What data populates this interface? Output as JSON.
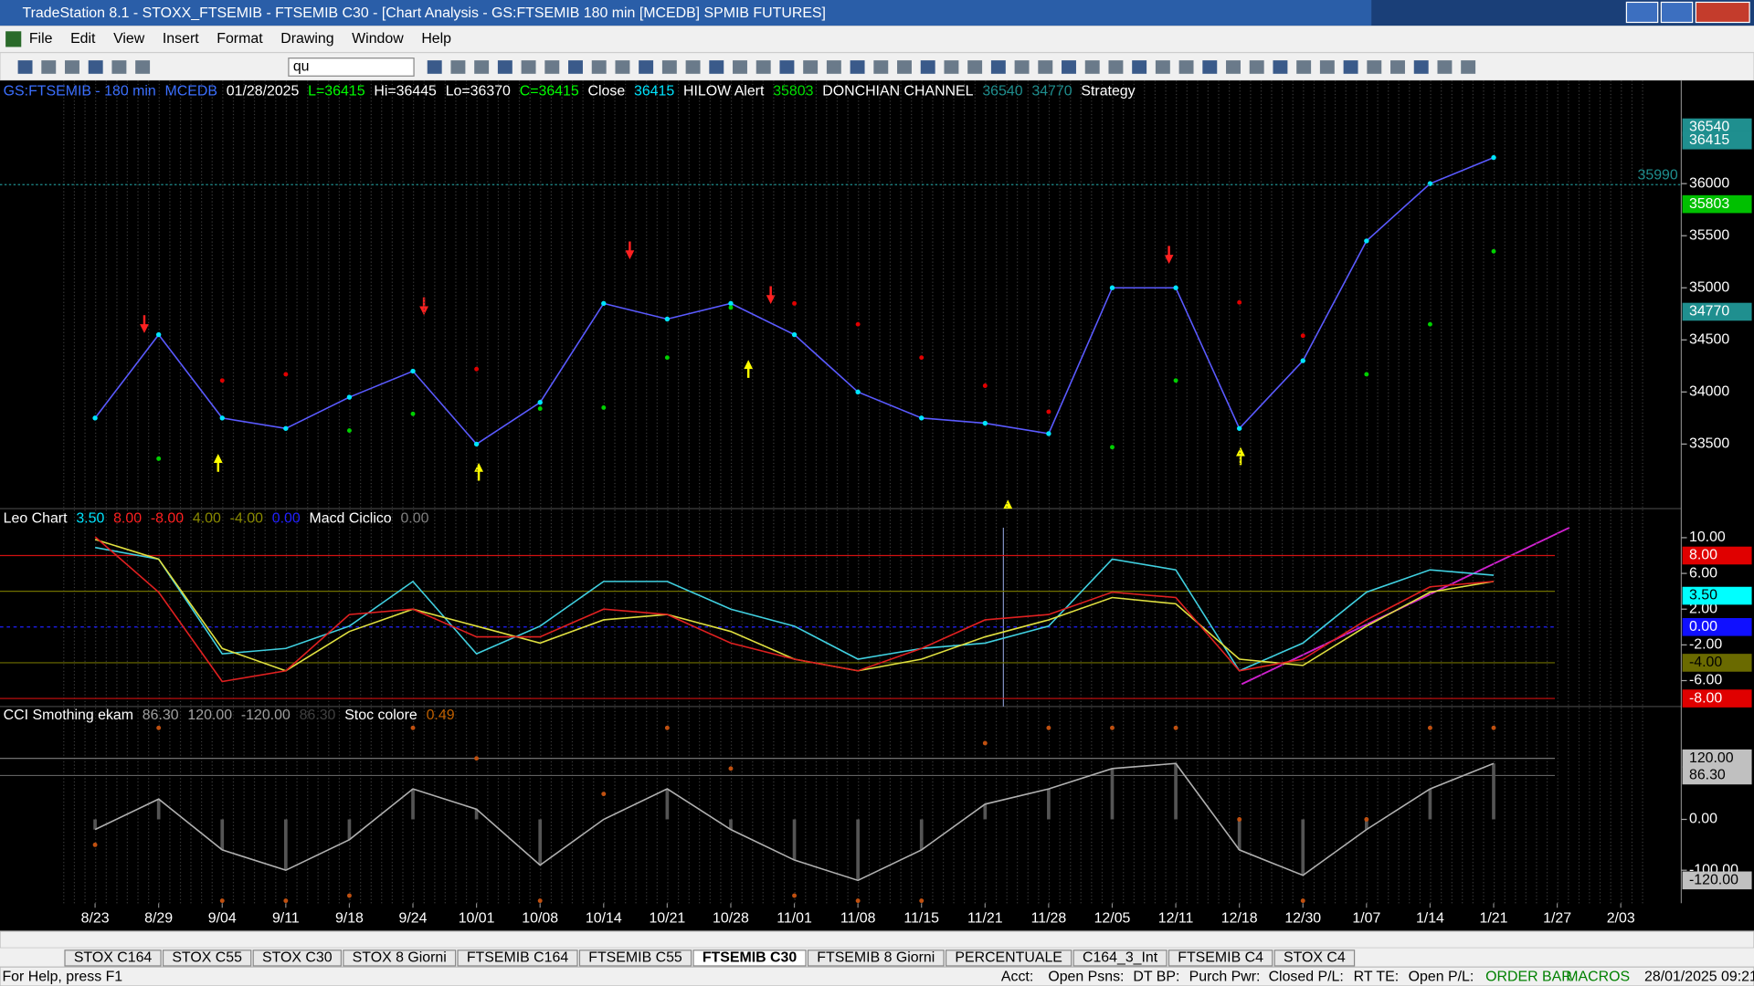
{
  "window": {
    "title": "TradeStation 8.1 - STOXX_FTSEMIB - FTSEMIB C30 - [Chart Analysis - GS:FTSEMIB  180 min  [MCEDB] SPMIB FUTURES]"
  },
  "menu": [
    "File",
    "Edit",
    "View",
    "Insert",
    "Format",
    "Drawing",
    "Window",
    "Help"
  ],
  "toolbar": {
    "symbol_box": "qu"
  },
  "chart_data": [
    {
      "type": "line",
      "header": [
        {
          "text": "GS:FTSEMIB - 180 min",
          "color": "#3b6fff"
        },
        {
          "text": "MCEDB",
          "color": "#3b6fff"
        },
        {
          "text": "01/28/2025",
          "color": "#ffffff"
        },
        {
          "text": "L=36415",
          "color": "#00ff00"
        },
        {
          "text": "Hi=36445",
          "color": "#ffffff"
        },
        {
          "text": "Lo=36370",
          "color": "#ffffff"
        },
        {
          "text": "C=36415",
          "color": "#00ff00"
        },
        {
          "text": "Close",
          "color": "#ffffff"
        },
        {
          "text": "36415",
          "color": "#00e5ff"
        },
        {
          "text": "HILOW Alert",
          "color": "#ffffff"
        },
        {
          "text": "35803",
          "color": "#00e000"
        },
        {
          "text": "DONCHIAN CHANNEL",
          "color": "#ffffff"
        },
        {
          "text": "36540",
          "color": "#1f8f8f"
        },
        {
          "text": "34770",
          "color": "#1f8f8f"
        },
        {
          "text": "Strategy",
          "color": "#ffffff"
        }
      ],
      "categories": [
        "8/23",
        "8/29",
        "9/04",
        "9/11",
        "9/18",
        "9/24",
        "10/01",
        "10/08",
        "10/14",
        "10/21",
        "10/28",
        "11/01",
        "11/08",
        "11/15",
        "11/21",
        "11/28",
        "12/05",
        "12/11",
        "12/18",
        "12/30",
        "1/07",
        "1/14",
        "1/21",
        "1/27",
        "2/03"
      ],
      "series": [
        {
          "color": "#00e5ff",
          "line_color": "#5a5aff",
          "dots": true,
          "values": [
            33750,
            34550,
            33750,
            33650,
            33950,
            34200,
            33500,
            33900,
            34850,
            34700,
            34850,
            34550,
            34000,
            33750,
            33700,
            33600,
            35000,
            35000,
            33650,
            34300,
            35450,
            36000,
            36250,
            null,
            null
          ]
        },
        {
          "color": "#00d000",
          "alt_color": "#e00000",
          "dotted": true,
          "values": [
            null,
            33360,
            34110,
            34170,
            33630,
            33790,
            34220,
            33840,
            33850,
            34330,
            34810,
            34850,
            34650,
            34330,
            34060,
            33810,
            33470,
            34110,
            34860,
            34540,
            34170,
            34650,
            35350,
            null,
            null
          ]
        }
      ],
      "ylim": [
        32880,
        36990
      ],
      "yticks": [
        33500,
        34000,
        34500,
        35000,
        35500,
        36000
      ],
      "markers": [
        {
          "value": 36540,
          "color": "#1f8f8f"
        },
        {
          "value": 36415,
          "color": "#1f8f8f"
        },
        {
          "value": 35990,
          "color": "#1f8f8f"
        },
        {
          "value": 35803,
          "color": "#00c000"
        },
        {
          "value": 34770,
          "color": "#1f8f8f"
        }
      ]
    },
    {
      "type": "line",
      "header": [
        {
          "text": "Leo Chart",
          "color": "#ffffff"
        },
        {
          "text": "3.50",
          "color": "#00e5ff"
        },
        {
          "text": "8.00",
          "color": "#ff2020"
        },
        {
          "text": "-8.00",
          "color": "#ff2020"
        },
        {
          "text": "4.00",
          "color": "#8a8a00"
        },
        {
          "text": "-4.00",
          "color": "#8a8a00"
        },
        {
          "text": "0.00",
          "color": "#2020ff"
        },
        {
          "text": "Macd Ciclico",
          "color": "#ffffff"
        },
        {
          "text": "0.00",
          "color": "#808080"
        }
      ],
      "series": [
        {
          "color": "#40d0e0",
          "values": [
            8.9,
            7.6,
            -3,
            -2.4,
            0.1,
            5.1,
            -3,
            0.1,
            5.1,
            5.1,
            2,
            0.1,
            -3.6,
            -2.4,
            -1.8,
            0.1,
            7.6,
            6.4,
            -4.9,
            -1.8,
            3.9,
            6.4,
            5.8,
            null,
            null
          ]
        },
        {
          "color": "#e0e040",
          "values": [
            9.8,
            7.6,
            -2.4,
            -4.9,
            -0.5,
            2,
            0.1,
            -1.8,
            0.8,
            1.4,
            -0.5,
            -3.6,
            -4.9,
            -3.6,
            -1.1,
            0.8,
            3.3,
            2.6,
            -3.6,
            -4.3,
            0.1,
            3.9,
            5.1,
            null,
            null
          ]
        },
        {
          "color": "#e02020",
          "values": [
            10.1,
            3.9,
            -6.1,
            -4.9,
            1.4,
            2,
            -1.1,
            -1.1,
            2,
            1.4,
            -1.8,
            -3.6,
            -4.9,
            -2.4,
            0.8,
            1.4,
            3.9,
            3.3,
            -4.9,
            -3.6,
            0.8,
            4.5,
            5.1,
            null,
            null
          ]
        }
      ],
      "ylim": [
        -8.9,
        13.25
      ],
      "yticks": [
        {
          "value": 10,
          "label": "10.00"
        },
        {
          "value": 6,
          "label": "6.00"
        },
        {
          "value": 2,
          "label": "2.00"
        },
        {
          "value": -2,
          "label": "-2.00"
        },
        {
          "value": -6,
          "label": "-6.00"
        }
      ],
      "levels": [
        {
          "value": 8,
          "color": "#d01010"
        },
        {
          "value": 4,
          "color": "#707000"
        },
        {
          "value": 0,
          "color": "#2020ff"
        },
        {
          "value": -4,
          "color": "#707000"
        },
        {
          "value": -8,
          "color": "#d01010"
        }
      ],
      "markers": [
        {
          "value": 8,
          "label": "8.00",
          "color": "#e00000"
        },
        {
          "value": 3.5,
          "label": "3.50",
          "color": "#00ffff"
        },
        {
          "value": 0,
          "label": "0.00",
          "color": "#1010ff"
        },
        {
          "value": -4,
          "label": "-4.00",
          "color": "#6a6a00"
        },
        {
          "value": -8,
          "label": "-8.00",
          "color": "#e00000"
        }
      ]
    },
    {
      "type": "line",
      "header": [
        {
          "text": "CCI Smothing ekam",
          "color": "#ffffff"
        },
        {
          "text": "86.30",
          "color": "#a0a0a0"
        },
        {
          "text": "120.00",
          "color": "#a0a0a0"
        },
        {
          "text": "-120.00",
          "color": "#a0a0a0"
        },
        {
          "text": "86.30",
          "color": "#404040"
        },
        {
          "text": "Stoc colore",
          "color": "#ffffff"
        },
        {
          "text": "0.49",
          "color": "#c06000"
        }
      ],
      "series": [
        {
          "color": "#b0b0b0",
          "histogram": true,
          "values": [
            -20,
            40,
            -60,
            -100,
            -40,
            60,
            20,
            -90,
            0,
            60,
            -20,
            -80,
            -120,
            -60,
            30,
            60,
            100,
            110,
            -60,
            -110,
            -20,
            60,
            110,
            null,
            null
          ]
        },
        {
          "color": "#c05010",
          "dotted": true,
          "values": [
            -50,
            180,
            -160,
            -160,
            -150,
            180,
            120,
            -160,
            50,
            180,
            100,
            -150,
            -160,
            -160,
            150,
            180,
            180,
            180,
            0,
            -160,
            0,
            180,
            180,
            null,
            null
          ]
        }
      ],
      "ylim": [
        -165,
        222
      ],
      "yticks": [
        {
          "value": 0,
          "label": "0.00"
        },
        {
          "value": -100,
          "label": "-100.00"
        }
      ],
      "levels": [
        {
          "value": 120,
          "color": "#808080"
        },
        {
          "value": 86.3,
          "color": "#606060"
        }
      ],
      "markers": [
        {
          "value": 120,
          "label": "120.00",
          "color": "#c0c0c0"
        },
        {
          "value": 86.3,
          "label": "86.30",
          "color": "#c0c0c0"
        },
        {
          "value": -120,
          "label": "-120.00",
          "color": "#c0c0c0"
        }
      ]
    }
  ],
  "tabs": [
    {
      "label": "STOX C164"
    },
    {
      "label": "STOX C55"
    },
    {
      "label": "STOX  C30"
    },
    {
      "label": "STOX  8 Giorni"
    },
    {
      "label": "FTSEMIB C164"
    },
    {
      "label": "FTSEMIB C55"
    },
    {
      "label": "FTSEMIB C30",
      "active": true
    },
    {
      "label": "FTSEMIB  8 Giorni"
    },
    {
      "label": "PERCENTUALE"
    },
    {
      "label": "C164_3_Int"
    },
    {
      "label": "FTSEMIB C4"
    },
    {
      "label": "STOX  C4"
    }
  ],
  "status_bar": [
    {
      "text": "For Help, press F1",
      "color": "#000000"
    },
    {
      "text": "Acct:",
      "color": "#000000"
    },
    {
      "text": "Open Psns:",
      "color": "#000000"
    },
    {
      "text": "DT BP:",
      "color": "#000000"
    },
    {
      "text": "Purch Pwr:",
      "color": "#000000"
    },
    {
      "text": "Closed P/L:",
      "color": "#000000"
    },
    {
      "text": "RT TE:",
      "color": "#000000"
    },
    {
      "text": "Open P/L:",
      "color": "#000000"
    },
    {
      "text": "ORDER BAR",
      "color": "#008000"
    },
    {
      "text": "MACROS",
      "color": "#008000"
    },
    {
      "text": "28/01/2025 09:21",
      "color": "#000000"
    }
  ]
}
